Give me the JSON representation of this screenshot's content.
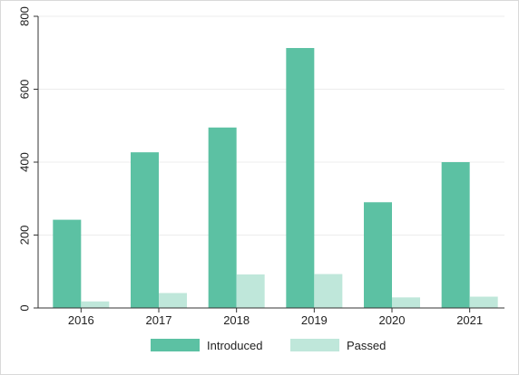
{
  "chart_data": {
    "type": "bar",
    "categories": [
      "2016",
      "2017",
      "2018",
      "2019",
      "2020",
      "2021"
    ],
    "series": [
      {
        "name": "Introduced",
        "color": "#5cc1a3",
        "values": [
          242,
          427,
          495,
          713,
          290,
          400
        ]
      },
      {
        "name": "Passed",
        "color": "#bfe7da",
        "values": [
          18,
          41,
          92,
          93,
          29,
          31
        ]
      }
    ],
    "title": "",
    "xlabel": "",
    "ylabel": "",
    "ylim": [
      0,
      800
    ],
    "yticks": [
      "0",
      "200",
      "400",
      "600",
      "800"
    ],
    "grid": true,
    "legend_position": "bottom"
  }
}
